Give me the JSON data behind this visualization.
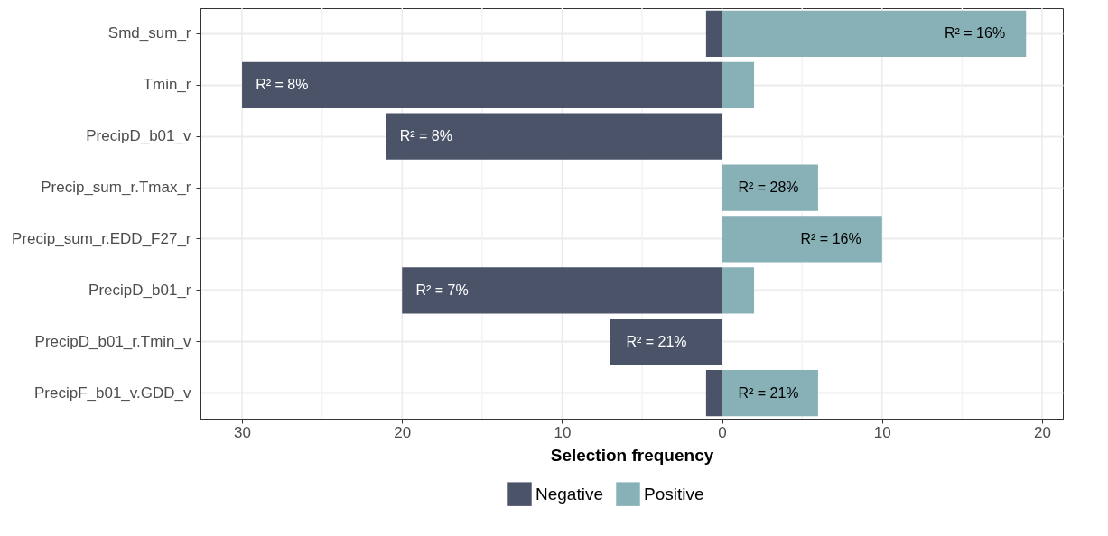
{
  "chart_data": {
    "type": "bar",
    "orientation": "horizontal",
    "stacked": true,
    "xlabel": "Selection frequency",
    "categories": [
      "Smd_sum_r",
      "Tmin_r",
      "PrecipD_b01_v",
      "Precip_sum_r.Tmax_r",
      "Precip_sum_r.EDD_F27_r",
      "PrecipD_b01_r",
      "PrecipD_b01_r.Tmin_v",
      "PrecipF_b01_v.GDD_v"
    ],
    "series": [
      {
        "name": "Negative",
        "color": "#4a5368",
        "values": [
          -1,
          -30,
          -21,
          0,
          0,
          -20,
          -7,
          -1
        ]
      },
      {
        "name": "Positive",
        "color": "#87b1b7",
        "values": [
          19,
          2,
          0,
          6,
          10,
          2,
          0,
          6
        ]
      }
    ],
    "xlim": [
      -32.6,
      21.3
    ],
    "xticks": [
      {
        "value": -30,
        "label": "30"
      },
      {
        "value": -25,
        "label": null
      },
      {
        "value": -20,
        "label": "20"
      },
      {
        "value": -15,
        "label": null
      },
      {
        "value": -10,
        "label": "10"
      },
      {
        "value": -5,
        "label": null
      },
      0,
      {
        "value": 5,
        "label": null
      },
      {
        "value": 10,
        "label": "10"
      },
      {
        "value": 15,
        "label": null
      },
      {
        "value": 20,
        "label": "20"
      }
    ],
    "annotations": [
      {
        "text": "R² = 16%",
        "x": 15.8,
        "y": "Smd_sum_r"
      },
      {
        "text": "R² = 8%",
        "x": -27.5,
        "y": "Tmin_r"
      },
      {
        "text": "R² = 8%",
        "x": -18.5,
        "y": "PrecipD_b01_v"
      },
      {
        "text": "R² = 28%",
        "x": 2.9,
        "y": "Precip_sum_r.Tmax_r"
      },
      {
        "text": "R² = 16%",
        "x": 6.8,
        "y": "Precip_sum_r.EDD_F27_r"
      },
      {
        "text": "R² = 7%",
        "x": -17.5,
        "y": "PrecipD_b01_r"
      },
      {
        "text": "R² = 21%",
        "x": -4.1,
        "y": "PrecipD_b01_r.Tmin_v"
      },
      {
        "text": "R² = 21%",
        "x": 2.9,
        "y": "PrecipF_b01_v.GDD_v"
      }
    ],
    "grid": true,
    "legend": "bottom"
  }
}
